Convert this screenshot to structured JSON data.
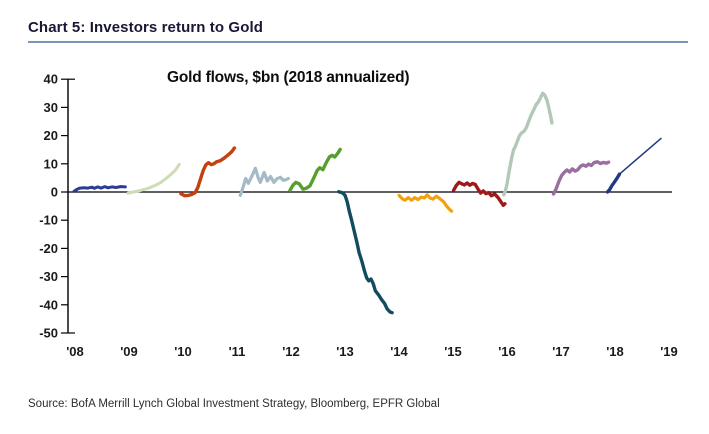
{
  "header": {
    "title": "Chart 5: Investors return to Gold"
  },
  "source": {
    "text": "Source: BofA Merrill Lynch Global Investment Strategy, Bloomberg, EPFR Global"
  },
  "chart_data": {
    "type": "line",
    "title": "Gold flows, $bn (2018 annualized)",
    "ylabel": "",
    "xlabel": "",
    "ylim": [
      -50,
      40
    ],
    "yticks": [
      40,
      30,
      20,
      10,
      0,
      -10,
      -20,
      -30,
      -40,
      -50
    ],
    "x_tick_labels": [
      "'08",
      "'09",
      "'10",
      "'11",
      "'12",
      "'13",
      "'14",
      "'15",
      "'16",
      "'17",
      "'18",
      "'19"
    ],
    "grid": false,
    "zero_line": true,
    "axis_color": "#000000",
    "note": "x values are years since 2008; one colored segment per calendar year; 2018 ends with a thin straight annualized projection line",
    "series": [
      {
        "name": "2008",
        "color": "#2c3b94",
        "width": 3,
        "points": [
          [
            0.0,
            0.2
          ],
          [
            0.05,
            0.9
          ],
          [
            0.1,
            1.3
          ],
          [
            0.18,
            1.5
          ],
          [
            0.26,
            1.4
          ],
          [
            0.33,
            1.7
          ],
          [
            0.38,
            1.3
          ],
          [
            0.44,
            1.8
          ],
          [
            0.5,
            1.4
          ],
          [
            0.57,
            1.9
          ],
          [
            0.63,
            1.5
          ],
          [
            0.7,
            1.8
          ],
          [
            0.78,
            1.6
          ],
          [
            0.86,
            1.9
          ],
          [
            0.95,
            1.8
          ]
        ]
      },
      {
        "name": "2009",
        "color": "#cdddb5",
        "width": 3,
        "points": [
          [
            1.0,
            -0.4
          ],
          [
            1.1,
            0.0
          ],
          [
            1.2,
            0.4
          ],
          [
            1.3,
            0.9
          ],
          [
            1.4,
            1.5
          ],
          [
            1.5,
            2.3
          ],
          [
            1.6,
            3.3
          ],
          [
            1.7,
            4.7
          ],
          [
            1.8,
            6.3
          ],
          [
            1.88,
            7.8
          ],
          [
            1.95,
            9.8
          ]
        ]
      },
      {
        "name": "2010",
        "color": "#c2410e",
        "width": 3.4,
        "points": [
          [
            1.98,
            -0.6
          ],
          [
            2.05,
            -1.3
          ],
          [
            2.12,
            -1.2
          ],
          [
            2.18,
            -0.9
          ],
          [
            2.24,
            -0.3
          ],
          [
            2.29,
            1.5
          ],
          [
            2.34,
            4.5
          ],
          [
            2.39,
            7.5
          ],
          [
            2.44,
            9.6
          ],
          [
            2.49,
            10.4
          ],
          [
            2.54,
            9.7
          ],
          [
            2.59,
            10.0
          ],
          [
            2.64,
            10.7
          ],
          [
            2.71,
            11.1
          ],
          [
            2.78,
            12.0
          ],
          [
            2.85,
            13.1
          ],
          [
            2.92,
            14.3
          ],
          [
            2.97,
            15.6
          ]
        ]
      },
      {
        "name": "2011",
        "color": "#a5bac7",
        "width": 3.2,
        "points": [
          [
            3.08,
            -1.2
          ],
          [
            3.13,
            1.6
          ],
          [
            3.18,
            4.8
          ],
          [
            3.23,
            3.1
          ],
          [
            3.3,
            5.9
          ],
          [
            3.36,
            8.4
          ],
          [
            3.41,
            5.1
          ],
          [
            3.45,
            3.4
          ],
          [
            3.52,
            6.9
          ],
          [
            3.58,
            3.9
          ],
          [
            3.64,
            5.5
          ],
          [
            3.7,
            3.4
          ],
          [
            3.76,
            4.7
          ],
          [
            3.82,
            5.2
          ],
          [
            3.88,
            4.1
          ],
          [
            3.93,
            4.4
          ],
          [
            3.97,
            4.8
          ]
        ]
      },
      {
        "name": "2012",
        "color": "#55a02c",
        "width": 3.4,
        "points": [
          [
            4.0,
            0.6
          ],
          [
            4.06,
            2.5
          ],
          [
            4.11,
            3.4
          ],
          [
            4.17,
            2.9
          ],
          [
            4.24,
            1.0
          ],
          [
            4.3,
            1.3
          ],
          [
            4.37,
            2.2
          ],
          [
            4.44,
            5.0
          ],
          [
            4.5,
            7.5
          ],
          [
            4.55,
            8.6
          ],
          [
            4.61,
            7.9
          ],
          [
            4.67,
            10.4
          ],
          [
            4.73,
            12.4
          ],
          [
            4.78,
            13.0
          ],
          [
            4.83,
            12.4
          ],
          [
            4.89,
            13.9
          ],
          [
            4.93,
            15.1
          ]
        ]
      },
      {
        "name": "2013",
        "color": "#134b5f",
        "width": 3.4,
        "points": [
          [
            4.9,
            0.1
          ],
          [
            4.97,
            -0.3
          ],
          [
            5.02,
            -1.2
          ],
          [
            5.06,
            -3.5
          ],
          [
            5.1,
            -7.0
          ],
          [
            5.14,
            -10.0
          ],
          [
            5.19,
            -14.0
          ],
          [
            5.24,
            -18.0
          ],
          [
            5.28,
            -21.5
          ],
          [
            5.33,
            -24.5
          ],
          [
            5.38,
            -28.0
          ],
          [
            5.42,
            -30.5
          ],
          [
            5.46,
            -31.5
          ],
          [
            5.5,
            -30.9
          ],
          [
            5.54,
            -32.5
          ],
          [
            5.58,
            -35.0
          ],
          [
            5.64,
            -36.5
          ],
          [
            5.69,
            -38.0
          ],
          [
            5.75,
            -39.5
          ],
          [
            5.8,
            -41.5
          ],
          [
            5.85,
            -42.5
          ],
          [
            5.89,
            -42.8
          ]
        ]
      },
      {
        "name": "2014",
        "color": "#f2a20d",
        "width": 3.2,
        "points": [
          [
            6.02,
            -1.2
          ],
          [
            6.08,
            -2.4
          ],
          [
            6.13,
            -2.9
          ],
          [
            6.19,
            -2.0
          ],
          [
            6.25,
            -2.9
          ],
          [
            6.31,
            -2.0
          ],
          [
            6.37,
            -2.7
          ],
          [
            6.43,
            -1.8
          ],
          [
            6.49,
            -2.1
          ],
          [
            6.54,
            -1.0
          ],
          [
            6.59,
            -2.1
          ],
          [
            6.65,
            -2.5
          ],
          [
            6.71,
            -1.5
          ],
          [
            6.77,
            -2.3
          ],
          [
            6.84,
            -3.4
          ],
          [
            6.9,
            -5.0
          ],
          [
            6.95,
            -6.1
          ],
          [
            6.99,
            -6.8
          ]
        ]
      },
      {
        "name": "2015",
        "color": "#9e1a1a",
        "width": 3.4,
        "points": [
          [
            7.03,
            0.6
          ],
          [
            7.08,
            2.3
          ],
          [
            7.13,
            3.4
          ],
          [
            7.18,
            2.9
          ],
          [
            7.23,
            2.5
          ],
          [
            7.28,
            3.2
          ],
          [
            7.33,
            2.4
          ],
          [
            7.38,
            3.0
          ],
          [
            7.43,
            2.7
          ],
          [
            7.48,
            1.1
          ],
          [
            7.53,
            -0.4
          ],
          [
            7.58,
            0.4
          ],
          [
            7.63,
            -0.6
          ],
          [
            7.68,
            -0.2
          ],
          [
            7.73,
            -1.3
          ],
          [
            7.79,
            -0.7
          ],
          [
            7.85,
            -1.9
          ],
          [
            7.9,
            -3.3
          ],
          [
            7.95,
            -4.7
          ],
          [
            7.98,
            -4.2
          ]
        ]
      },
      {
        "name": "2016",
        "color": "#b2c9b8",
        "width": 3.4,
        "points": [
          [
            7.96,
            -1.0
          ],
          [
            7.99,
            0.5
          ],
          [
            8.02,
            3.0
          ],
          [
            8.05,
            6.5
          ],
          [
            8.08,
            9.5
          ],
          [
            8.11,
            12.5
          ],
          [
            8.14,
            15.0
          ],
          [
            8.17,
            16.0
          ],
          [
            8.21,
            18.0
          ],
          [
            8.25,
            20.0
          ],
          [
            8.29,
            21.0
          ],
          [
            8.33,
            21.5
          ],
          [
            8.37,
            22.6
          ],
          [
            8.41,
            24.5
          ],
          [
            8.46,
            27.0
          ],
          [
            8.51,
            29.0
          ],
          [
            8.56,
            31.0
          ],
          [
            8.6,
            32.0
          ],
          [
            8.64,
            33.5
          ],
          [
            8.68,
            35.0
          ],
          [
            8.72,
            34.3
          ],
          [
            8.76,
            32.5
          ],
          [
            8.79,
            30.0
          ],
          [
            8.82,
            27.5
          ],
          [
            8.85,
            24.5
          ]
        ]
      },
      {
        "name": "2017",
        "color": "#9a6fa0",
        "width": 3.4,
        "points": [
          [
            8.88,
            -0.7
          ],
          [
            8.93,
            1.2
          ],
          [
            8.98,
            3.8
          ],
          [
            9.03,
            5.8
          ],
          [
            9.08,
            7.0
          ],
          [
            9.13,
            7.8
          ],
          [
            9.18,
            7.1
          ],
          [
            9.23,
            8.2
          ],
          [
            9.28,
            7.4
          ],
          [
            9.33,
            7.9
          ],
          [
            9.38,
            9.1
          ],
          [
            9.43,
            9.6
          ],
          [
            9.48,
            9.1
          ],
          [
            9.53,
            9.9
          ],
          [
            9.58,
            9.4
          ],
          [
            9.63,
            10.4
          ],
          [
            9.69,
            10.7
          ],
          [
            9.75,
            10.1
          ],
          [
            9.81,
            10.5
          ],
          [
            9.86,
            10.2
          ],
          [
            9.9,
            10.6
          ]
        ]
      },
      {
        "name": "2018",
        "color": "#23397f",
        "width": 3.4,
        "points": [
          [
            9.88,
            0.0
          ],
          [
            9.92,
            0.9
          ],
          [
            9.96,
            2.2
          ],
          [
            10.0,
            3.3
          ],
          [
            10.05,
            4.7
          ],
          [
            10.1,
            6.3
          ]
        ]
      },
      {
        "name": "2018 annualized",
        "color": "#23397f",
        "width": 1.5,
        "points": [
          [
            10.1,
            6.3
          ],
          [
            10.87,
            19.0
          ]
        ]
      }
    ]
  }
}
